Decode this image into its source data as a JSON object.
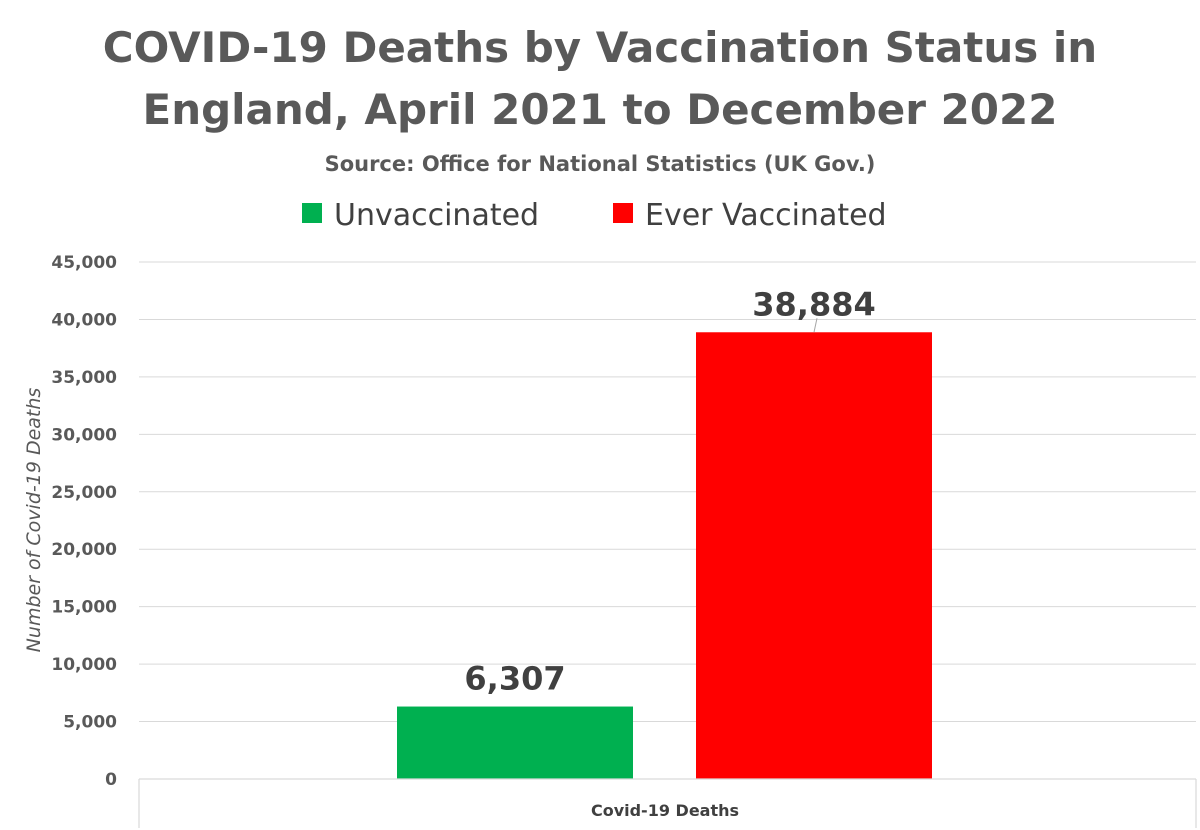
{
  "chart_data": {
    "type": "bar",
    "title_lines": [
      "COVID-19 Deaths by Vaccination Status in",
      "England, April 2021 to December 2022"
    ],
    "subtitle": "Source: Office for National Statistics (UK Gov.)",
    "categories": [
      "Covid-19 Deaths"
    ],
    "series": [
      {
        "name": "Unvaccinated",
        "values": [
          6307
        ],
        "color": "#00b050",
        "data_label": "6,307"
      },
      {
        "name": "Ever Vaccinated",
        "values": [
          38884
        ],
        "color": "#ff0000",
        "data_label": "38,884"
      }
    ],
    "xlabel": "",
    "ylabel": "Number of Covid-19 Deaths",
    "ylim": [
      0,
      45000
    ],
    "yticks": [
      0,
      5000,
      10000,
      15000,
      20000,
      25000,
      30000,
      35000,
      40000,
      45000
    ],
    "ytick_labels": [
      "0",
      "5,000",
      "10,000",
      "15,000",
      "20,000",
      "25,000",
      "30,000",
      "35,000",
      "40,000",
      "45,000"
    ],
    "grid": true,
    "legend_position": "top"
  }
}
